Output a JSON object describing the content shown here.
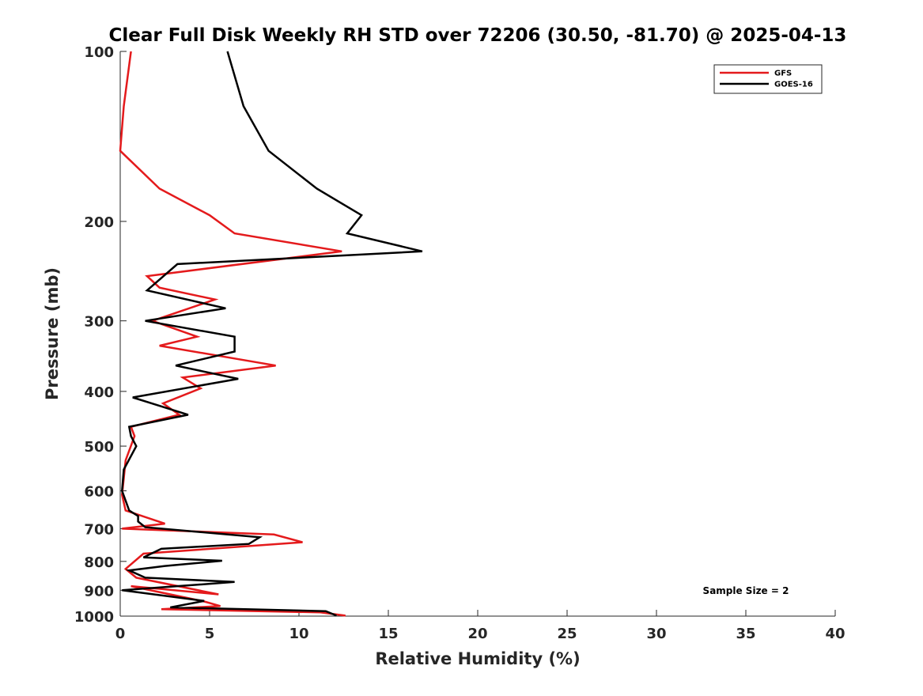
{
  "chart_data": {
    "type": "line",
    "title": "Clear Full Disk Weekly RH STD over 72206 (30.50, -81.70) @ 2025-04-13",
    "xlabel": "Relative Humidity (%)",
    "ylabel": "Pressure (mb)",
    "xlim": [
      0,
      40
    ],
    "ylim": [
      100,
      1000
    ],
    "y_scale": "log",
    "y_reversed": true,
    "x_ticks": [
      0,
      5,
      10,
      15,
      20,
      25,
      30,
      35,
      40
    ],
    "y_ticks": [
      100,
      200,
      300,
      400,
      500,
      600,
      700,
      800,
      900,
      1000
    ],
    "grid": false,
    "legend_position": "top-right",
    "annotation": "Sample Size = 2",
    "series": [
      {
        "name": "GFS",
        "color": "#e41a1c",
        "points": [
          [
            0.6,
            100
          ],
          [
            0.2,
            125
          ],
          [
            0.0,
            150
          ],
          [
            2.2,
            175
          ],
          [
            5.0,
            195
          ],
          [
            6.4,
            210
          ],
          [
            12.4,
            226
          ],
          [
            1.5,
            250
          ],
          [
            2.2,
            262
          ],
          [
            5.3,
            275
          ],
          [
            1.8,
            300
          ],
          [
            4.3,
            320
          ],
          [
            2.2,
            332
          ],
          [
            8.7,
            360
          ],
          [
            3.5,
            378
          ],
          [
            4.5,
            395
          ],
          [
            2.4,
            420
          ],
          [
            3.3,
            440
          ],
          [
            0.6,
            462
          ],
          [
            0.8,
            480
          ],
          [
            0.3,
            530
          ],
          [
            0.2,
            570
          ],
          [
            0.1,
            610
          ],
          [
            0.3,
            650
          ],
          [
            2.5,
            686
          ],
          [
            0.1,
            700
          ],
          [
            8.6,
            717
          ],
          [
            10.2,
            740
          ],
          [
            1.3,
            775
          ],
          [
            0.3,
            825
          ],
          [
            0.9,
            855
          ],
          [
            5.5,
            915
          ],
          [
            0.6,
            885
          ],
          [
            4.7,
            942
          ],
          [
            5.6,
            960
          ],
          [
            2.3,
            972
          ],
          [
            11.2,
            985
          ],
          [
            12.6,
            998
          ]
        ]
      },
      {
        "name": "GOES-16",
        "color": "#000000",
        "points": [
          [
            6.0,
            100
          ],
          [
            6.9,
            125
          ],
          [
            8.3,
            150
          ],
          [
            11.0,
            175
          ],
          [
            13.5,
            195
          ],
          [
            12.7,
            210
          ],
          [
            16.9,
            226
          ],
          [
            3.2,
            238
          ],
          [
            1.5,
            265
          ],
          [
            5.9,
            285
          ],
          [
            1.4,
            300
          ],
          [
            6.4,
            320
          ],
          [
            6.4,
            340
          ],
          [
            3.1,
            360
          ],
          [
            6.6,
            380
          ],
          [
            0.7,
            410
          ],
          [
            3.8,
            440
          ],
          [
            0.5,
            462
          ],
          [
            0.6,
            480
          ],
          [
            0.9,
            500
          ],
          [
            0.2,
            550
          ],
          [
            0.1,
            600
          ],
          [
            0.5,
            650
          ],
          [
            1.0,
            665
          ],
          [
            1.0,
            680
          ],
          [
            1.4,
            696
          ],
          [
            7.8,
            725
          ],
          [
            7.2,
            745
          ],
          [
            2.3,
            760
          ],
          [
            1.3,
            787
          ],
          [
            5.7,
            798
          ],
          [
            2.5,
            815
          ],
          [
            0.5,
            830
          ],
          [
            1.4,
            855
          ],
          [
            6.4,
            870
          ],
          [
            0.1,
            900
          ],
          [
            4.7,
            940
          ],
          [
            2.8,
            965
          ],
          [
            11.5,
            980
          ],
          [
            12.1,
            998
          ]
        ]
      }
    ]
  }
}
